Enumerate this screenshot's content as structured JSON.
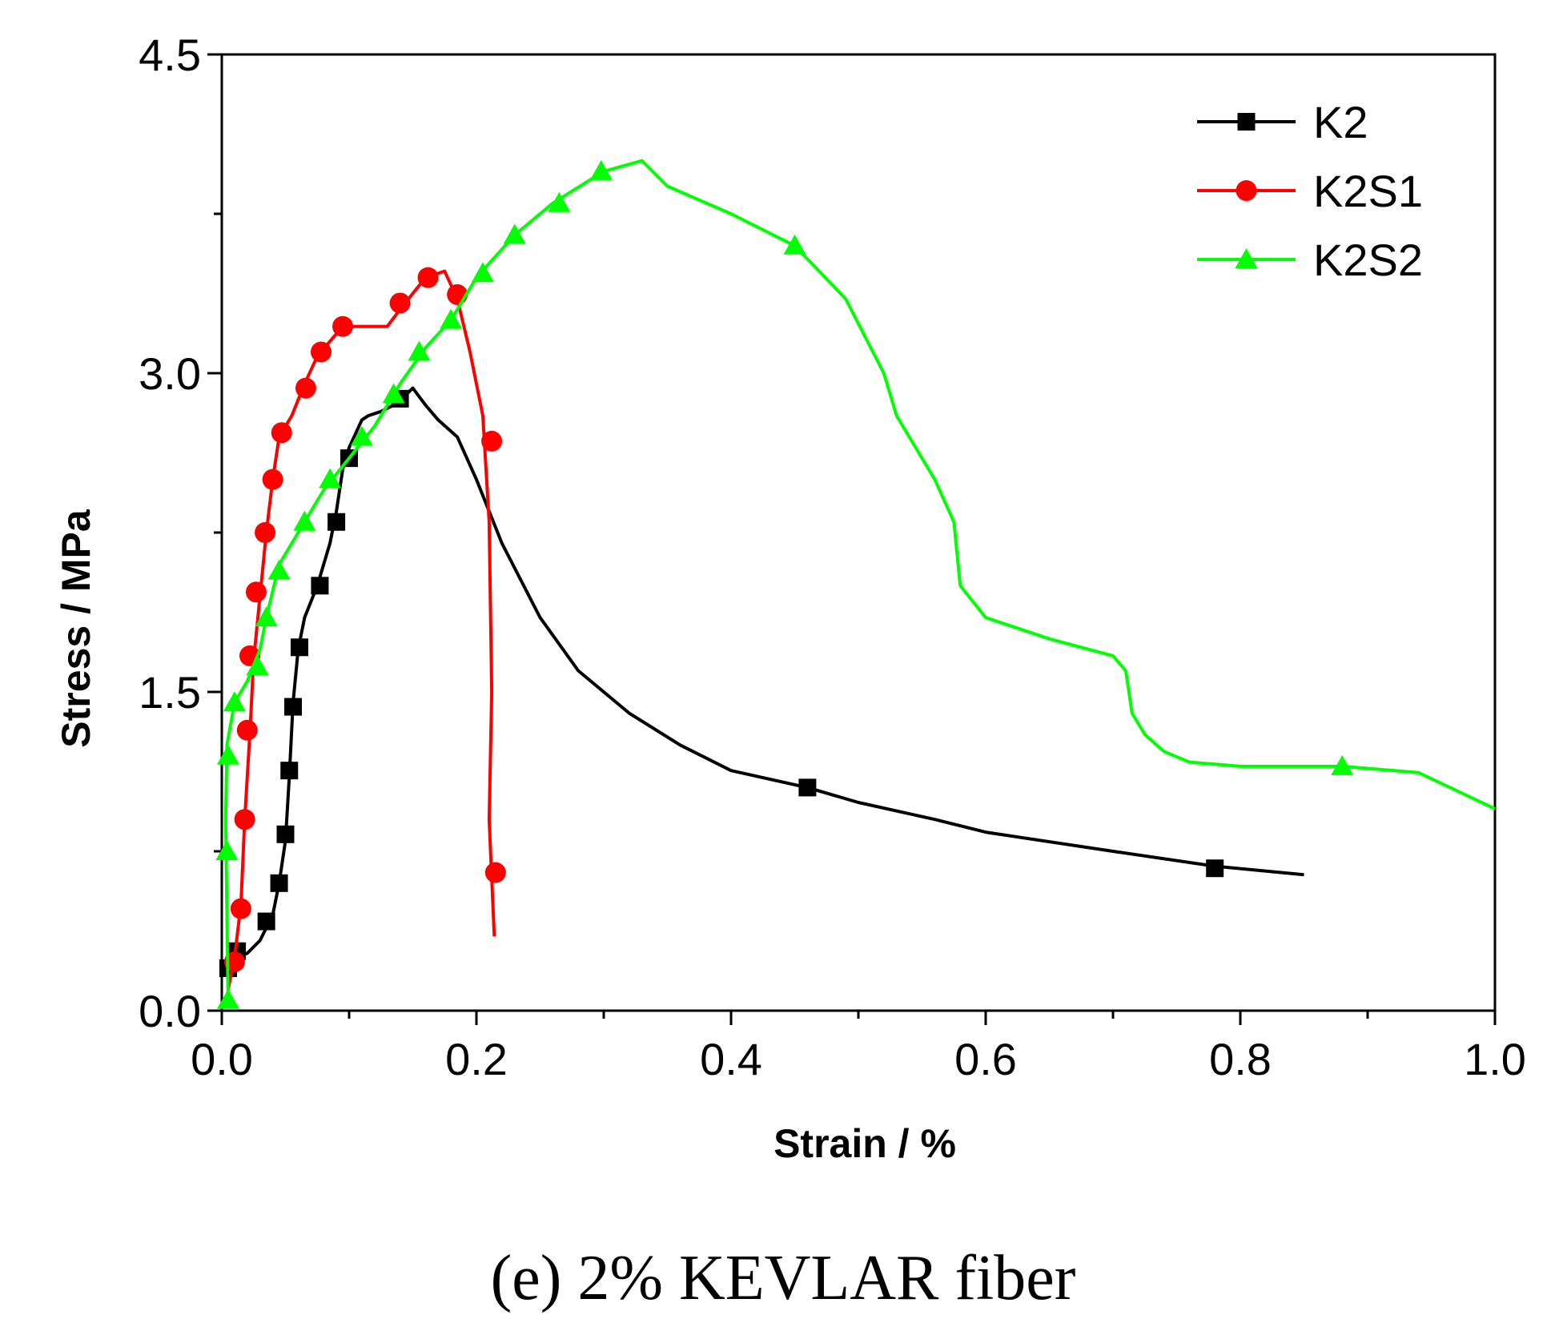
{
  "chart_data": {
    "type": "line",
    "title": "",
    "xlabel": "Strain / %",
    "ylabel": "Stress / MPa",
    "xlim": [
      0.0,
      1.0
    ],
    "ylim": [
      0.0,
      4.5
    ],
    "x_ticks": [
      0.0,
      0.2,
      0.4,
      0.6,
      0.8,
      1.0
    ],
    "x_tick_labels": [
      "0.0",
      "0.2",
      "0.4",
      "0.6",
      "0.8",
      "1.0"
    ],
    "y_ticks": [
      0.0,
      1.5,
      3.0,
      4.5
    ],
    "y_tick_labels": [
      "0.0",
      "1.5",
      "3.0",
      "4.5"
    ],
    "y_minor_step": 0.75,
    "x_minor_step": 0.1,
    "grid": false,
    "legend_position": "top-right",
    "series": [
      {
        "name": "K2",
        "color": "#000000",
        "marker": "square",
        "points": [
          [
            0.005,
            0.2
          ],
          [
            0.01,
            0.25
          ],
          [
            0.02,
            0.27
          ],
          [
            0.03,
            0.33
          ],
          [
            0.04,
            0.45
          ],
          [
            0.045,
            0.6
          ],
          [
            0.05,
            0.8
          ],
          [
            0.053,
            1.1
          ],
          [
            0.056,
            1.45
          ],
          [
            0.06,
            1.7
          ],
          [
            0.065,
            1.85
          ],
          [
            0.075,
            2.0
          ],
          [
            0.085,
            2.2
          ],
          [
            0.09,
            2.35
          ],
          [
            0.095,
            2.55
          ],
          [
            0.1,
            2.65
          ],
          [
            0.11,
            2.78
          ],
          [
            0.115,
            2.8
          ],
          [
            0.125,
            2.82
          ],
          [
            0.135,
            2.85
          ],
          [
            0.145,
            2.9
          ],
          [
            0.15,
            2.93
          ],
          [
            0.16,
            2.85
          ],
          [
            0.17,
            2.78
          ],
          [
            0.185,
            2.7
          ],
          [
            0.2,
            2.5
          ],
          [
            0.22,
            2.2
          ],
          [
            0.25,
            1.85
          ],
          [
            0.28,
            1.6
          ],
          [
            0.32,
            1.4
          ],
          [
            0.36,
            1.25
          ],
          [
            0.4,
            1.13
          ],
          [
            0.46,
            1.05
          ],
          [
            0.5,
            0.98
          ],
          [
            0.56,
            0.9
          ],
          [
            0.6,
            0.84
          ],
          [
            0.7,
            0.75
          ],
          [
            0.78,
            0.68
          ],
          [
            0.85,
            0.64
          ]
        ],
        "marker_points": [
          [
            0.005,
            0.2
          ],
          [
            0.012,
            0.28
          ],
          [
            0.035,
            0.42
          ],
          [
            0.045,
            0.6
          ],
          [
            0.05,
            0.83
          ],
          [
            0.053,
            1.13
          ],
          [
            0.056,
            1.43
          ],
          [
            0.061,
            1.71
          ],
          [
            0.077,
            2.0
          ],
          [
            0.09,
            2.3
          ],
          [
            0.1,
            2.6
          ],
          [
            0.14,
            2.88
          ],
          [
            0.46,
            1.05
          ],
          [
            0.78,
            0.67
          ]
        ]
      },
      {
        "name": "K2S1",
        "color": "#ff0000",
        "marker": "circle",
        "points": [
          [
            0.005,
            0.1
          ],
          [
            0.01,
            0.25
          ],
          [
            0.015,
            0.5
          ],
          [
            0.018,
            0.9
          ],
          [
            0.022,
            1.3
          ],
          [
            0.025,
            1.65
          ],
          [
            0.03,
            1.95
          ],
          [
            0.035,
            2.25
          ],
          [
            0.04,
            2.5
          ],
          [
            0.045,
            2.7
          ],
          [
            0.05,
            2.75
          ],
          [
            0.055,
            2.8
          ],
          [
            0.065,
            2.95
          ],
          [
            0.075,
            3.08
          ],
          [
            0.085,
            3.15
          ],
          [
            0.095,
            3.22
          ],
          [
            0.11,
            3.22
          ],
          [
            0.13,
            3.22
          ],
          [
            0.14,
            3.3
          ],
          [
            0.16,
            3.45
          ],
          [
            0.175,
            3.48
          ],
          [
            0.185,
            3.35
          ],
          [
            0.195,
            3.1
          ],
          [
            0.205,
            2.8
          ],
          [
            0.21,
            2.3
          ],
          [
            0.212,
            1.5
          ],
          [
            0.21,
            0.9
          ],
          [
            0.214,
            0.35
          ]
        ],
        "marker_points": [
          [
            0.01,
            0.23
          ],
          [
            0.015,
            0.48
          ],
          [
            0.018,
            0.9
          ],
          [
            0.02,
            1.32
          ],
          [
            0.022,
            1.67
          ],
          [
            0.027,
            1.97
          ],
          [
            0.034,
            2.25
          ],
          [
            0.04,
            2.5
          ],
          [
            0.047,
            2.72
          ],
          [
            0.066,
            2.93
          ],
          [
            0.078,
            3.1
          ],
          [
            0.095,
            3.22
          ],
          [
            0.14,
            3.33
          ],
          [
            0.162,
            3.45
          ],
          [
            0.185,
            3.37
          ],
          [
            0.212,
            2.68
          ],
          [
            0.215,
            0.65
          ]
        ]
      },
      {
        "name": "K2S2",
        "color": "#00ff00",
        "marker": "triangle",
        "points": [
          [
            0.005,
            0.05
          ],
          [
            0.003,
            0.9
          ],
          [
            0.004,
            1.25
          ],
          [
            0.01,
            1.45
          ],
          [
            0.02,
            1.55
          ],
          [
            0.03,
            1.7
          ],
          [
            0.035,
            1.85
          ],
          [
            0.045,
            2.1
          ],
          [
            0.06,
            2.25
          ],
          [
            0.08,
            2.45
          ],
          [
            0.1,
            2.6
          ],
          [
            0.12,
            2.75
          ],
          [
            0.14,
            2.95
          ],
          [
            0.16,
            3.12
          ],
          [
            0.18,
            3.25
          ],
          [
            0.2,
            3.45
          ],
          [
            0.23,
            3.65
          ],
          [
            0.26,
            3.8
          ],
          [
            0.3,
            3.95
          ],
          [
            0.33,
            4.0
          ],
          [
            0.35,
            3.88
          ],
          [
            0.4,
            3.75
          ],
          [
            0.45,
            3.6
          ],
          [
            0.49,
            3.35
          ],
          [
            0.52,
            3.0
          ],
          [
            0.53,
            2.8
          ],
          [
            0.56,
            2.5
          ],
          [
            0.575,
            2.3
          ],
          [
            0.58,
            2.0
          ],
          [
            0.6,
            1.85
          ],
          [
            0.65,
            1.75
          ],
          [
            0.7,
            1.67
          ],
          [
            0.71,
            1.6
          ],
          [
            0.715,
            1.4
          ],
          [
            0.725,
            1.3
          ],
          [
            0.74,
            1.22
          ],
          [
            0.76,
            1.17
          ],
          [
            0.8,
            1.15
          ],
          [
            0.88,
            1.15
          ],
          [
            0.94,
            1.12
          ],
          [
            1.0,
            0.95
          ]
        ],
        "marker_points": [
          [
            0.005,
            0.05
          ],
          [
            0.004,
            0.75
          ],
          [
            0.005,
            1.2
          ],
          [
            0.01,
            1.45
          ],
          [
            0.028,
            1.62
          ],
          [
            0.035,
            1.85
          ],
          [
            0.045,
            2.07
          ],
          [
            0.065,
            2.3
          ],
          [
            0.085,
            2.5
          ],
          [
            0.11,
            2.7
          ],
          [
            0.135,
            2.9
          ],
          [
            0.155,
            3.1
          ],
          [
            0.18,
            3.25
          ],
          [
            0.205,
            3.47
          ],
          [
            0.23,
            3.65
          ],
          [
            0.265,
            3.8
          ],
          [
            0.298,
            3.95
          ],
          [
            0.45,
            3.6
          ],
          [
            0.88,
            1.15
          ]
        ]
      }
    ]
  },
  "caption": "(e) 2% KEVLAR fiber"
}
